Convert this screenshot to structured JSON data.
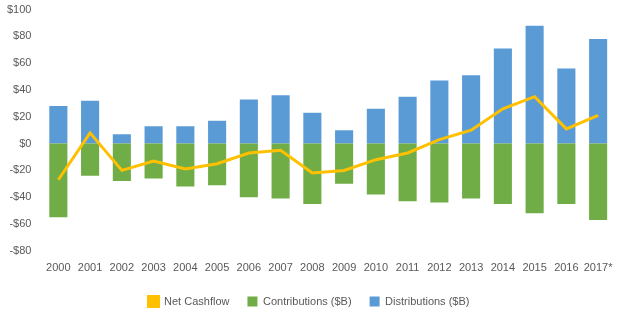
{
  "chart_data": {
    "type": "bar",
    "categories": [
      "2000",
      "2001",
      "2002",
      "2003",
      "2004",
      "2005",
      "2006",
      "2007",
      "2008",
      "2009",
      "2010",
      "2011",
      "2012",
      "2013",
      "2014",
      "2015",
      "2016",
      "2017*"
    ],
    "series": [
      {
        "name": "Contributions ($B)",
        "type": "bar",
        "color": "#70ad47",
        "values": [
          -55,
          -24,
          -28,
          -26,
          -32,
          -31,
          -40,
          -41,
          -45,
          -30,
          -38,
          -43,
          -44,
          -41,
          -45,
          -52,
          -45,
          -57
        ]
      },
      {
        "name": "Distributions ($B)",
        "type": "bar",
        "color": "#5b9bd5",
        "values": [
          28,
          32,
          7,
          13,
          13,
          17,
          33,
          36,
          23,
          10,
          26,
          35,
          47,
          51,
          71,
          88,
          56,
          78
        ]
      },
      {
        "name": "Net Cashflow",
        "type": "line",
        "color": "#ffc000",
        "marker": "none",
        "values": [
          -27,
          8,
          -20,
          -13,
          -19,
          -15,
          -7,
          -5,
          -22,
          -20,
          -12,
          -7,
          3,
          10,
          26,
          35,
          11,
          21
        ]
      }
    ],
    "ylim": [
      -80,
      100
    ],
    "yticks": [
      {
        "value": -80,
        "label": "-$80"
      },
      {
        "value": -60,
        "label": "-$60"
      },
      {
        "value": -40,
        "label": "-$40"
      },
      {
        "value": -20,
        "label": "-$20"
      },
      {
        "value": 0,
        "label": "$0"
      },
      {
        "value": 20,
        "label": "$20"
      },
      {
        "value": 40,
        "label": "$40"
      },
      {
        "value": 60,
        "label": "$60"
      },
      {
        "value": 80,
        "label": "$80"
      },
      {
        "value": 100,
        "label": "$100"
      }
    ],
    "grid": false,
    "legend": "bottom",
    "stacked": true
  }
}
